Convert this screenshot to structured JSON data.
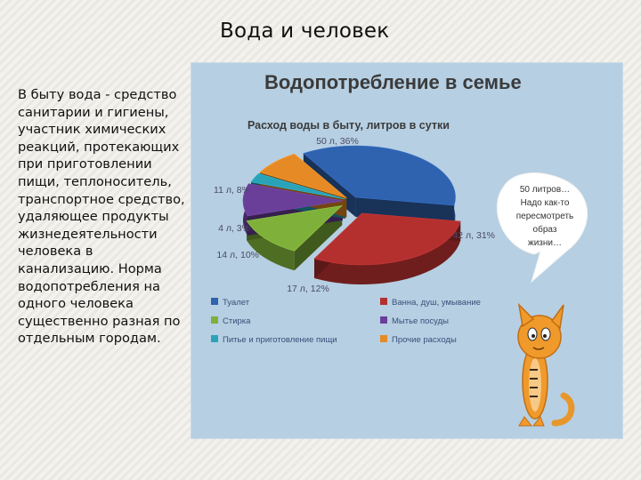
{
  "slide": {
    "title": "Вода и человек",
    "body": "В быту вода - средство санитарии и гигиены, участник химических реакций, протекающих при приготовлении пищи, теплоноситель, транспортное средство, удаляющее продукты жизнедеятельности человека в канализацию. Норма водопотребления на одного человека существенно разная по отдельным городам."
  },
  "bubble": {
    "lines": [
      "50 литров…",
      "Надо как-то",
      "пересмотреть",
      "образ",
      "жизни…"
    ]
  },
  "chart_data": {
    "type": "pie",
    "title": "Водопотребление в семье",
    "subtitle": "Расход воды в быту, литров в сутки",
    "unit": "л",
    "slices": [
      {
        "name": "Туалет",
        "value": 50,
        "percent": 36,
        "label": "50 л, 36%",
        "color": "#2f63b0"
      },
      {
        "name": "Ванна, душ, умывание",
        "value": 42,
        "percent": 31,
        "label": "42 л, 31%",
        "color": "#b3302f"
      },
      {
        "name": "Стирка",
        "value": 17,
        "percent": 12,
        "label": "17 л, 12%",
        "color": "#7fb13a"
      },
      {
        "name": "Мытье посуды",
        "value": 14,
        "percent": 10,
        "label": "14 л, 10%",
        "color": "#6a3f99"
      },
      {
        "name": "Питье и приготовление пищи",
        "value": 4,
        "percent": 3,
        "label": "4 л, 3%",
        "color": "#2aa3b8"
      },
      {
        "name": "Прочие расходы",
        "value": 11,
        "percent": 8,
        "label": "11 л, 8%",
        "color": "#e58a25"
      }
    ],
    "legend": {
      "placement": "bottom",
      "columns": [
        [
          "Туалет",
          "Стирка",
          "Питье и приготовление пищи"
        ],
        [
          "Ванна, душ, умывание",
          "Мытье посуды",
          "Прочие расходы"
        ]
      ]
    }
  }
}
